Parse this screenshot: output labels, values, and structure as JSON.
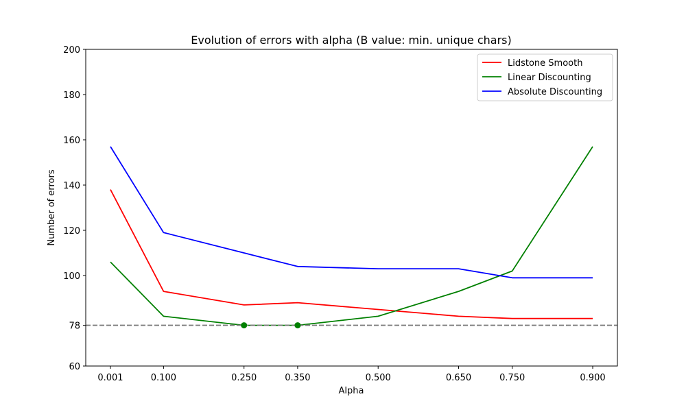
{
  "chart_data": {
    "type": "line",
    "title": "Evolution of errors with alpha (B value: min. unique chars)",
    "xlabel": "Alpha",
    "ylabel": "Number of errors",
    "x_ticks": [
      "0.001",
      "0.100",
      "0.250",
      "0.350",
      "0.500",
      "0.650",
      "0.750",
      "0.900"
    ],
    "x_tick_values": [
      0.001,
      0.1,
      0.25,
      0.35,
      0.5,
      0.65,
      0.75,
      0.9
    ],
    "y_ticks": [
      "60",
      "78",
      "100",
      "120",
      "140",
      "160",
      "180",
      "200"
    ],
    "y_tick_values": [
      60,
      78,
      100,
      120,
      140,
      160,
      180,
      200
    ],
    "xlim": [
      -0.045,
      0.946
    ],
    "ylim": [
      60,
      200
    ],
    "grid": false,
    "legend_position": "top-right",
    "series": [
      {
        "name": "Lidstone Smooth",
        "color": "#ff0000",
        "values": [
          138,
          93,
          87,
          88,
          85,
          82,
          81,
          81
        ]
      },
      {
        "name": "Linear Discounting",
        "color": "#008000",
        "values": [
          106,
          82,
          78,
          78,
          82,
          93,
          102,
          157
        ]
      },
      {
        "name": "Absolute Discounting",
        "color": "#0000ff",
        "values": [
          157,
          119,
          110,
          104,
          103,
          103,
          99,
          99
        ]
      }
    ],
    "reference_line": {
      "y": 78,
      "color": "#808080",
      "style": "dashed"
    },
    "highlight_points": {
      "series": "Linear Discounting",
      "color": "#008000",
      "x": [
        0.25,
        0.35
      ],
      "y": [
        78,
        78
      ]
    }
  }
}
